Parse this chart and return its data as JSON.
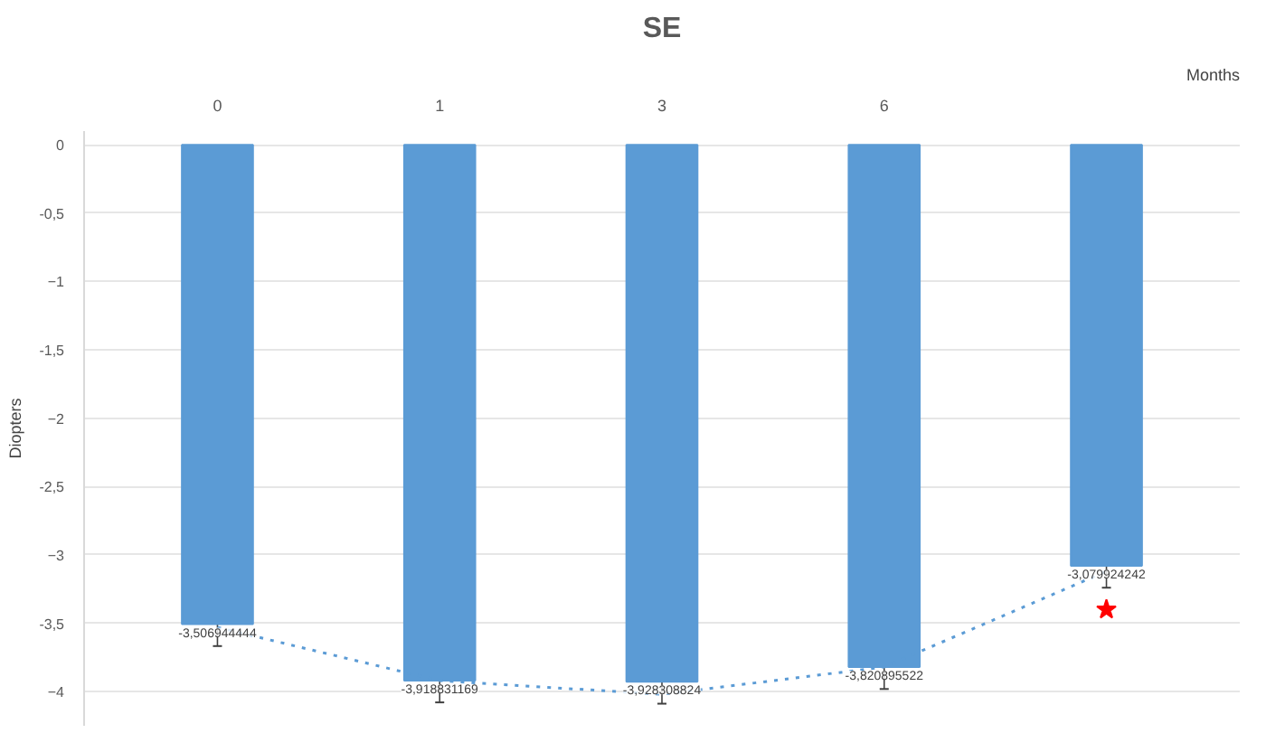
{
  "chart_data": {
    "type": "bar",
    "title": "SE",
    "xlabel": "Months",
    "ylabel": "Diopters",
    "categories": [
      "0",
      "1",
      "3",
      "6",
      null
    ],
    "series": [
      {
        "color": "#5b9bd5",
        "values": [
          -3.506944444,
          -3.918831169,
          -3.928308824,
          -3.820895522,
          -3.079924242
        ],
        "errors": [
          0.16,
          0.16,
          0.16,
          0.16,
          0.16
        ],
        "value_labels": [
          "-3,506944444",
          "-3,918831169",
          "-3,928308824",
          "-3,820895522",
          "-3,079924242"
        ]
      },
      {
        "type": "line",
        "color": "#5b9bd5",
        "line_style": "dotted",
        "values": [
          -3.53,
          -3.92,
          -4.02,
          -3.82,
          -3.12
        ]
      },
      {
        "type": "scatter",
        "color": "#ff0000",
        "marker": "star",
        "values": [
          null,
          null,
          null,
          null,
          -3.4
        ]
      }
    ],
    "ylim": [
      -4.25,
      0.1
    ],
    "yticks": [
      0,
      {
        "value": -0.5,
        "label": "-0,5"
      },
      -1,
      {
        "value": -1.5,
        "label": "-1,5"
      },
      -2,
      {
        "value": -2.5,
        "label": "-2,5"
      },
      -3,
      {
        "value": -3.5,
        "label": "-3,5"
      },
      -4
    ],
    "grid": "y"
  }
}
